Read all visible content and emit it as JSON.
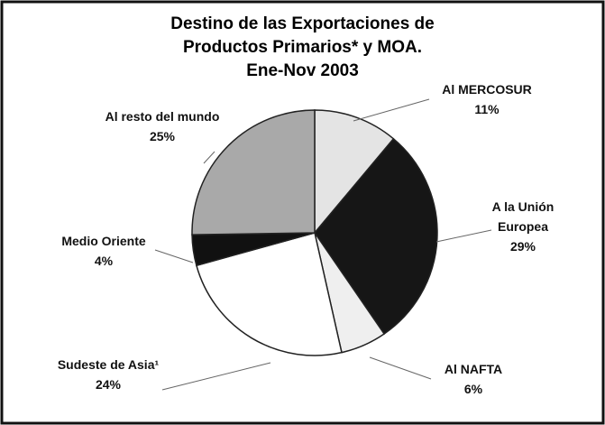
{
  "chart_data": {
    "type": "pie",
    "title": [
      "Destino de las Exportaciones de",
      "Productos Primarios* y MOA.",
      "Ene-Nov 2003"
    ],
    "categories": [
      "Al MERCOSUR",
      "A la Unión Europea",
      "Al NAFTA",
      "Sudeste de Asia¹",
      "Medio Oriente",
      "Al resto del mundo"
    ],
    "values": [
      11,
      29,
      6,
      24,
      4,
      25
    ],
    "value_labels": [
      "11%",
      "29%",
      "6%",
      "24%",
      "4%",
      "25%"
    ],
    "colors": [
      "#e4e4e4",
      "#161616",
      "#efefef",
      "#ffffff",
      "#111111",
      "#a9a9a9"
    ]
  }
}
